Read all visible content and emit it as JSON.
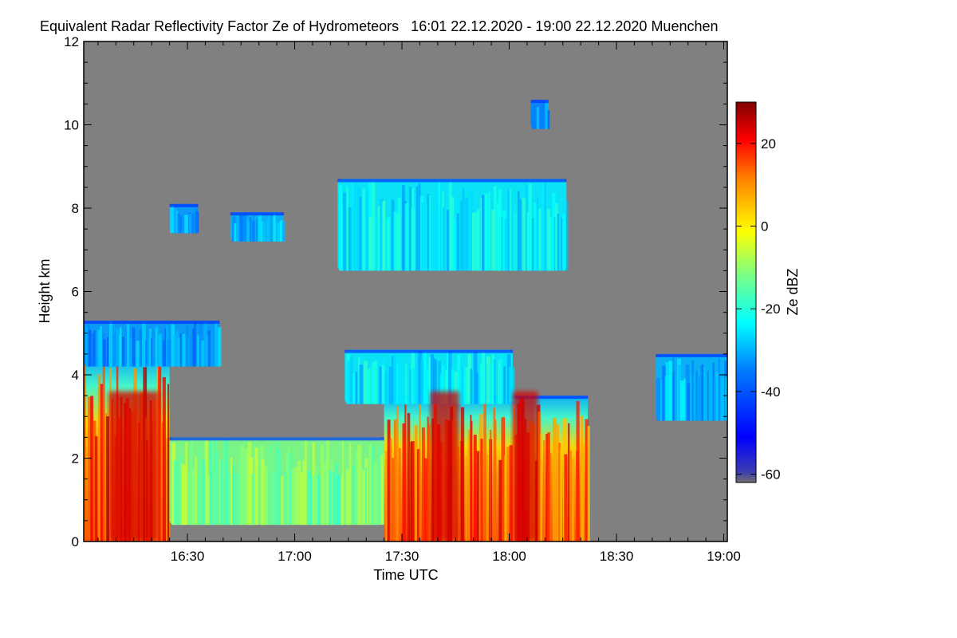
{
  "chart_data": {
    "type": "heatmap",
    "title": "Equivalent Radar Reflectivity Factor Ze of Hydrometeors   16:01 22.12.2020 - 19:00 22.12.2020 Muenchen",
    "xlabel": "Time UTC",
    "ylabel": "Height km",
    "x_range_minutes_utc": [
      961,
      1141
    ],
    "x_ticks": [
      {
        "minute": 990,
        "label": "16:30"
      },
      {
        "minute": 1020,
        "label": "17:00"
      },
      {
        "minute": 1050,
        "label": "17:30"
      },
      {
        "minute": 1080,
        "label": "18:00"
      },
      {
        "minute": 1110,
        "label": "18:30"
      },
      {
        "minute": 1140,
        "label": "19:00"
      }
    ],
    "ylim": [
      0,
      12
    ],
    "y_ticks": [
      0,
      2,
      4,
      6,
      8,
      10,
      12
    ],
    "colorbar": {
      "label": "Ze dBZ",
      "range": [
        -62,
        30
      ],
      "ticks": [
        -60,
        -40,
        -20,
        0,
        20
      ],
      "colormap": "jet"
    },
    "background_color": "#808080",
    "echo_regions": [
      {
        "name": "low-precip-left",
        "t0": 961,
        "t1": 985,
        "h0": 0,
        "h1": 4.4,
        "ze": 18
      },
      {
        "name": "low-precip-mid",
        "t0": 985,
        "t1": 1045,
        "h0": 0.4,
        "h1": 2.5,
        "ze": -12
      },
      {
        "name": "low-precip-main",
        "t0": 1045,
        "t1": 1102,
        "h0": 0,
        "h1": 3.5,
        "ze": 15
      },
      {
        "name": "precip-top-left",
        "t0": 961,
        "t1": 999,
        "h0": 4.2,
        "h1": 5.3,
        "ze": -32
      },
      {
        "name": "precip-top-main",
        "t0": 1034,
        "t1": 1081,
        "h0": 3.3,
        "h1": 4.6,
        "ze": -25
      },
      {
        "name": "mid-cloud-right",
        "t0": 1121,
        "t1": 1141,
        "h0": 2.9,
        "h1": 4.5,
        "ze": -30
      },
      {
        "name": "upper-cloud-1",
        "t0": 985,
        "t1": 993,
        "h0": 7.4,
        "h1": 8.1,
        "ze": -32
      },
      {
        "name": "upper-cloud-2",
        "t0": 1002,
        "t1": 1017,
        "h0": 7.2,
        "h1": 7.9,
        "ze": -30
      },
      {
        "name": "upper-cloud-3",
        "t0": 1032,
        "t1": 1096,
        "h0": 6.5,
        "h1": 8.7,
        "ze": -25
      },
      {
        "name": "cirrus-fragment",
        "t0": 1086,
        "t1": 1091,
        "h0": 9.9,
        "h1": 10.6,
        "ze": -34
      }
    ]
  }
}
